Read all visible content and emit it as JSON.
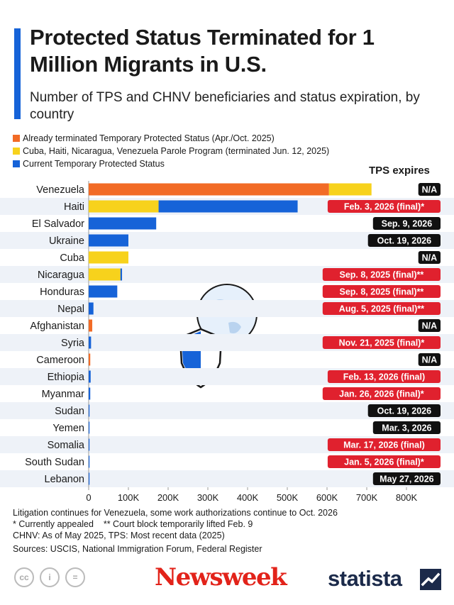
{
  "header": {
    "title": "Protected Status Terminated for 1 Million Migrants in U.S.",
    "subtitle": "Number of TPS and CHNV beneficiaries and status expiration, by country"
  },
  "legend": [
    {
      "label": "Already terminated Temporary Protected Status (Apr./Oct. 2025)",
      "color": "#f26b26"
    },
    {
      "label": "Cuba, Haiti, Nicaragua, Venezuela Parole Program (terminated Jun. 12, 2025)",
      "color": "#f7d21c"
    },
    {
      "label": "Current Temporary Protected Status",
      "color": "#1663d8"
    }
  ],
  "tps_header": "TPS expires",
  "chart_data": {
    "type": "bar",
    "orientation": "horizontal",
    "stacked": true,
    "categories": [
      "Venezuela",
      "Haiti",
      "El Salvador",
      "Ukraine",
      "Cuba",
      "Nicaragua",
      "Honduras",
      "Nepal",
      "Afghanistan",
      "Syria",
      "Cameroon",
      "Ethiopia",
      "Myanmar",
      "Sudan",
      "Yemen",
      "Somalia",
      "South Sudan",
      "Lebanon"
    ],
    "series": [
      {
        "name": "Already terminated Temporary Protected Status (Apr./Oct. 2025)",
        "color": "#f26b26",
        "values": [
          605000,
          0,
          0,
          0,
          0,
          0,
          0,
          0,
          9000,
          0,
          4000,
          0,
          0,
          0,
          0,
          0,
          0,
          0
        ]
      },
      {
        "name": "Cuba, Haiti, Nicaragua, Venezuela Parole Program (terminated Jun. 12, 2025)",
        "color": "#f7d21c",
        "values": [
          107000,
          176000,
          0,
          0,
          100000,
          80000,
          0,
          0,
          0,
          0,
          0,
          0,
          0,
          0,
          0,
          0,
          0,
          0
        ]
      },
      {
        "name": "Current Temporary Protected Status",
        "color": "#1663d8",
        "values": [
          0,
          350000,
          170000,
          100000,
          0,
          4000,
          72000,
          12000,
          0,
          6000,
          0,
          5000,
          4000,
          2000,
          1500,
          1000,
          300,
          200
        ]
      }
    ],
    "expires": [
      {
        "text": "N/A",
        "style": "black"
      },
      {
        "text": "Feb. 3, 2026 (final)*",
        "style": "red"
      },
      {
        "text": "Sep. 9, 2026",
        "style": "black"
      },
      {
        "text": "Oct. 19, 2026",
        "style": "black"
      },
      {
        "text": "N/A",
        "style": "black"
      },
      {
        "text": "Sep. 8, 2025 (final)**",
        "style": "red"
      },
      {
        "text": "Sep. 8, 2025 (final)**",
        "style": "red"
      },
      {
        "text": "Aug. 5, 2025 (final)**",
        "style": "red"
      },
      {
        "text": "N/A",
        "style": "black"
      },
      {
        "text": "Nov. 21, 2025 (final)*",
        "style": "red"
      },
      {
        "text": "N/A",
        "style": "black"
      },
      {
        "text": "Feb. 13, 2026 (final)",
        "style": "red"
      },
      {
        "text": "Jan. 26, 2026 (final)*",
        "style": "red"
      },
      {
        "text": "Oct. 19, 2026",
        "style": "black"
      },
      {
        "text": "Mar. 3, 2026",
        "style": "black"
      },
      {
        "text": "Mar. 17, 2026 (final)",
        "style": "red"
      },
      {
        "text": "Jan. 5, 2026 (final)*",
        "style": "red"
      },
      {
        "text": "May 27, 2026",
        "style": "black"
      }
    ],
    "xticks": [
      "0",
      "100K",
      "200K",
      "300K",
      "400K",
      "500K",
      "600K",
      "700K",
      "800K"
    ],
    "xlim": [
      0,
      800000
    ],
    "grid": false,
    "legend_position": "top-left"
  },
  "notes": [
    "Litigation continues for Venezuela, some work authorizations continue to Oct. 2026",
    "* Currently appealed    ** Court block temporarily lifted Feb. 9",
    "CHNV: As of May 2025, TPS: Most recent data (2025)",
    "Sources: USCIS, National Immigration Forum, Federal Register"
  ],
  "footer": {
    "cc_icons": [
      "cc-icon",
      "by-icon",
      "nd-icon"
    ],
    "cc_labels": [
      "cc",
      "i",
      "="
    ],
    "newsweek": "Newsweek",
    "statista": "statista"
  }
}
